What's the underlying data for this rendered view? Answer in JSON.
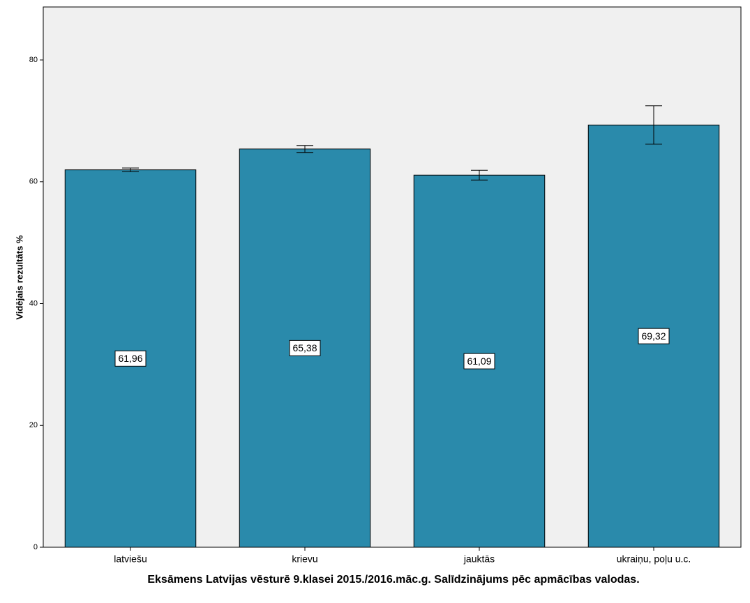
{
  "chart_data": {
    "type": "bar",
    "title": "Eksāmens Latvijas vēsturē 9.klasei 2015./2016.māc.g. Salīdzinājums pēc apmācības valodas.",
    "y_label": "Vidējais rezultāts %",
    "categories": [
      "latviešu",
      "krievu",
      "jauktās",
      "ukraiņu, poļu u.c."
    ],
    "values": [
      61.96,
      65.38,
      61.09,
      69.32
    ],
    "value_labels": [
      "61,96",
      "65,38",
      "61,09",
      "69,32"
    ],
    "errors": [
      0.3,
      0.57,
      0.8,
      3.15
    ],
    "color": "#2a8aab",
    "ylim": [
      0,
      88.7
    ],
    "yticks": [
      0,
      20,
      40,
      60,
      80
    ]
  }
}
